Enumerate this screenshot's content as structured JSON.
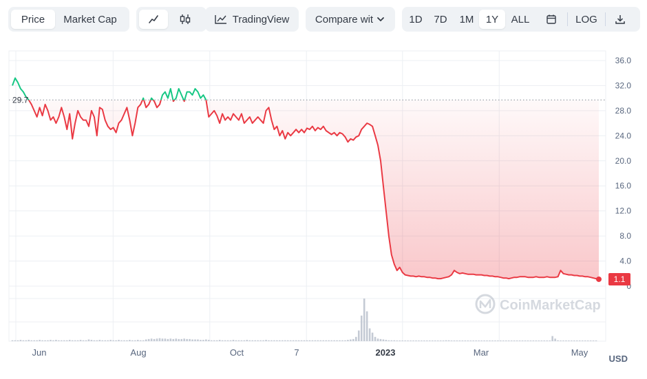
{
  "toolbar": {
    "price_tab": "Price",
    "market_cap_tab": "Market Cap",
    "line_chart_icon": "line-chart-icon",
    "candlestick_icon": "candlestick-icon",
    "tradingview_label": "TradingView",
    "compare_label": "Compare wit",
    "compare_icon": "chevron-down-icon",
    "ranges": [
      "1D",
      "7D",
      "1M",
      "1Y",
      "ALL"
    ],
    "active_range": "1Y",
    "calendar_icon": "calendar-icon",
    "log_label": "LOG",
    "download_icon": "download-icon"
  },
  "watermark": "CoinMarketCap",
  "chart_data": {
    "type": "line",
    "ylim": [
      0,
      38
    ],
    "y_ticks": [
      "36.0",
      "32.0",
      "28.0",
      "24.0",
      "20.0",
      "16.0",
      "12.0",
      "8.0",
      "4.0",
      "0"
    ],
    "x_ticks": [
      "Jun",
      "Aug",
      "Oct",
      "7",
      "2023",
      "Mar",
      "May"
    ],
    "y_unit": "USD",
    "reference_value": "29.7",
    "last_value": "1.1",
    "colors": {
      "above": "#16c784",
      "below": "#ea3943",
      "fill": "#ea3943",
      "reference": "#9aa0a8"
    },
    "series": [
      {
        "values": [
          32.0,
          33.2,
          32.5,
          31.5,
          31.0,
          30.2,
          29.7,
          29.0,
          28.0,
          27.0,
          28.5,
          27.2,
          29.0,
          28.0,
          26.5,
          27.0,
          26.0,
          27.0,
          28.5,
          27.0,
          25.0,
          27.5,
          23.5,
          26.0,
          28.0,
          27.0,
          26.5,
          26.5,
          25.5,
          28.0,
          27.0,
          24.0,
          28.5,
          28.2,
          26.5,
          25.5,
          25.0,
          25.3,
          24.5,
          26.0,
          26.5,
          27.5,
          28.5,
          26.5,
          24.0,
          26.0,
          28.5,
          29.0,
          30.0,
          28.5,
          29.0,
          30.0,
          29.5,
          28.5,
          29.0,
          30.5,
          31.0,
          30.0,
          31.5,
          29.5,
          30.0,
          31.5,
          30.5,
          29.5,
          31.0,
          31.0,
          30.5,
          31.5,
          31.0,
          30.0,
          30.5,
          29.7,
          27.0,
          27.5,
          28.0,
          27.2,
          26.0,
          27.5,
          26.5,
          27.0,
          26.5,
          27.5,
          27.0,
          26.5,
          27.5,
          26.0,
          26.5,
          27.0,
          26.0,
          26.5,
          27.0,
          26.5,
          26.0,
          28.0,
          28.5,
          26.5,
          25.0,
          25.5,
          24.0,
          24.8,
          23.5,
          24.5,
          24.0,
          24.5,
          25.0,
          24.5,
          25.0,
          24.5,
          25.2,
          25.0,
          25.5,
          24.8,
          25.3,
          25.0,
          25.5,
          24.8,
          24.5,
          24.2,
          24.5,
          24.0,
          24.5,
          24.3,
          23.8,
          23.0,
          23.5,
          23.3,
          23.8,
          24.0,
          25.0,
          25.5,
          26.0,
          25.8,
          25.5,
          24.0,
          22.5,
          20.0,
          16.0,
          12.0,
          8.0,
          5.0,
          3.5,
          2.5,
          3.0,
          2.2,
          1.8,
          1.7,
          1.6,
          1.6,
          1.5,
          1.6,
          1.5,
          1.5,
          1.4,
          1.4,
          1.3,
          1.3,
          1.2,
          1.2,
          1.3,
          1.4,
          1.5,
          1.8,
          2.5,
          2.2,
          2.0,
          2.1,
          2.0,
          1.9,
          1.9,
          1.9,
          1.8,
          1.8,
          1.8,
          1.7,
          1.7,
          1.6,
          1.6,
          1.5,
          1.5,
          1.4,
          1.3,
          1.3,
          1.2,
          1.3,
          1.4,
          1.4,
          1.5,
          1.5,
          1.5,
          1.4,
          1.4,
          1.4,
          1.5,
          1.4,
          1.4,
          1.4,
          1.5,
          1.4,
          1.4,
          1.4,
          1.5,
          2.5,
          2.0,
          1.9,
          1.8,
          1.8,
          1.7,
          1.7,
          1.6,
          1.6,
          1.5,
          1.5,
          1.4,
          1.3,
          1.2,
          1.1
        ]
      }
    ],
    "volume": [
      0.02,
      0.02,
      0.02,
      0.03,
      0.02,
      0.02,
      0.03,
      0.02,
      0.02,
      0.02,
      0.03,
      0.02,
      0.02,
      0.02,
      0.03,
      0.02,
      0.03,
      0.02,
      0.02,
      0.02,
      0.02,
      0.03,
      0.02,
      0.02,
      0.02,
      0.03,
      0.02,
      0.02,
      0.04,
      0.03,
      0.02,
      0.02,
      0.03,
      0.02,
      0.02,
      0.02,
      0.03,
      0.02,
      0.02,
      0.03,
      0.02,
      0.02,
      0.02,
      0.03,
      0.02,
      0.02,
      0.03,
      0.02,
      0.02,
      0.04,
      0.05,
      0.06,
      0.05,
      0.06,
      0.07,
      0.06,
      0.06,
      0.05,
      0.06,
      0.05,
      0.06,
      0.05,
      0.05,
      0.06,
      0.05,
      0.05,
      0.04,
      0.04,
      0.04,
      0.03,
      0.03,
      0.04,
      0.03,
      0.02,
      0.02,
      0.02,
      0.03,
      0.02,
      0.02,
      0.02,
      0.02,
      0.03,
      0.02,
      0.02,
      0.02,
      0.02,
      0.03,
      0.02,
      0.02,
      0.02,
      0.02,
      0.02,
      0.02,
      0.03,
      0.02,
      0.02,
      0.02,
      0.02,
      0.02,
      0.02,
      0.02,
      0.02,
      0.02,
      0.02,
      0.02,
      0.02,
      0.02,
      0.02,
      0.02,
      0.02,
      0.02,
      0.02,
      0.02,
      0.02,
      0.02,
      0.02,
      0.02,
      0.02,
      0.02,
      0.02,
      0.02,
      0.02,
      0.02,
      0.03,
      0.04,
      0.05,
      0.1,
      0.25,
      0.6,
      1.0,
      0.7,
      0.3,
      0.2,
      0.1,
      0.06,
      0.05,
      0.04,
      0.03,
      0.02,
      0.02,
      0.02,
      0.01,
      0.01,
      0.01,
      0.01,
      0.01,
      0.01,
      0.01,
      0.01,
      0.01,
      0.01,
      0.01,
      0.01,
      0.01,
      0.01,
      0.01,
      0.01,
      0.01,
      0.01,
      0.02,
      0.02,
      0.01,
      0.01,
      0.01,
      0.01,
      0.01,
      0.01,
      0.01,
      0.01,
      0.01,
      0.01,
      0.01,
      0.01,
      0.01,
      0.01,
      0.01,
      0.01,
      0.01,
      0.01,
      0.01,
      0.01,
      0.01,
      0.01,
      0.01,
      0.01,
      0.01,
      0.01,
      0.01,
      0.01,
      0.01,
      0.01,
      0.01,
      0.01,
      0.01,
      0.01,
      0.01,
      0.01,
      0.01,
      0.12,
      0.06,
      0.02,
      0.01,
      0.01,
      0.01,
      0.01,
      0.01,
      0.01,
      0.01,
      0.01,
      0.01,
      0.01,
      0.01,
      0.01,
      0.01,
      0.01
    ]
  }
}
